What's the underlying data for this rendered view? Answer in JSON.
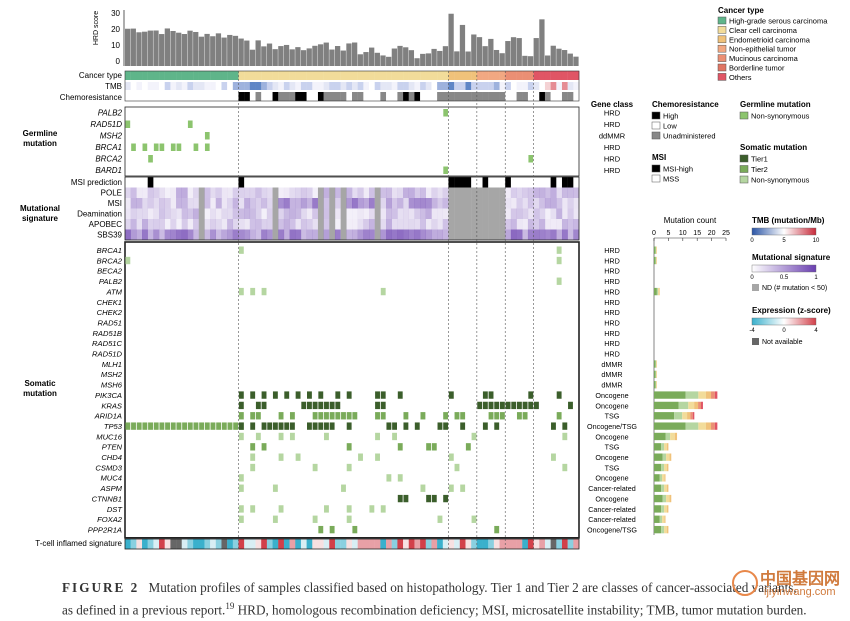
{
  "figure": {
    "bar_axis_label": "HRD score",
    "bar_axis_ticks": [
      "30",
      "20",
      "10",
      "0"
    ],
    "track_labels": {
      "cancer_type": "Cancer type",
      "tmb": "TMB",
      "chemo": "Chemoresistance"
    },
    "section_labels": {
      "germline": "Germline mutation",
      "signature": "Mutational signature",
      "somatic": "Somatic mutation"
    },
    "germline_genes": [
      "PALB2",
      "RAD51D",
      "MSH2",
      "BRCA1",
      "BRCA2",
      "BARD1"
    ],
    "germline_classes": [
      "HRD",
      "HRD",
      "ddMMR",
      "HRD",
      "HRD",
      "HRD"
    ],
    "signature_rows": [
      "MSI prediction",
      "POLE",
      "MSI",
      "Deamination",
      "APOBEC",
      "SBS39"
    ],
    "somatic_genes": [
      "BRCA1",
      "BRCA2",
      "BECA2",
      "PALB2",
      "ATM",
      "CHEK1",
      "CHEK2",
      "RAD51",
      "RAD51B",
      "RAD51C",
      "RAD51D",
      "MLH1",
      "MSH2",
      "MSH6",
      "PIK3CA",
      "KRAS",
      "ARID1A",
      "TP53",
      "MUC16",
      "PTEN",
      "CHD4",
      "CSMD3",
      "MUC4",
      "ASPM",
      "CTNNB1",
      "DST",
      "FOXA2",
      "PPP2R1A"
    ],
    "somatic_classes": [
      "HRD",
      "HRD",
      "HRD",
      "HRD",
      "HRD",
      "HRD",
      "HRD",
      "HRD",
      "HRD",
      "HRD",
      "HRD",
      "dMMR",
      "dMMR",
      "dMMR",
      "Oncogene",
      "Oncogene",
      "TSG",
      "Oncogene/TSG",
      "Oncogene",
      "TSG",
      "Oncogene",
      "TSG",
      "Oncogene",
      "Cancer-related",
      "Oncogene",
      "Cancer-related",
      "Cancer-related",
      "Oncogene/TSG"
    ],
    "tcell_label": "T-cell inflamed signature",
    "gene_class_header": "Gene class",
    "mutation_count": {
      "title": "Mutation count",
      "ticks": [
        "0",
        "5",
        "10",
        "15",
        "20",
        "25"
      ]
    }
  },
  "legends": {
    "cancer_type": {
      "title": "Cancer type",
      "items": [
        {
          "label": "High-grade serous carcinoma",
          "color": "#5fb58a"
        },
        {
          "label": "Clear cell carcinoma",
          "color": "#f2dc9a"
        },
        {
          "label": "Endometrioid carcinoma",
          "color": "#f0c27a"
        },
        {
          "label": "Non-epithelial tumor",
          "color": "#f2a882"
        },
        {
          "label": "Mucinous carcinoma",
          "color": "#eb8f74"
        },
        {
          "label": "Borderline tumor",
          "color": "#e07563"
        },
        {
          "label": "Others",
          "color": "#e05565"
        }
      ]
    },
    "chemo": {
      "title": "Chemoresistance",
      "items": [
        {
          "label": "High",
          "color": "#000000"
        },
        {
          "label": "Low",
          "color": "#ffffff"
        },
        {
          "label": "Unadministered",
          "color": "#888888"
        }
      ]
    },
    "germline": {
      "title": "Germline mutation",
      "items": [
        {
          "label": "Non-synonymous",
          "color": "#8cc46e"
        }
      ]
    },
    "msi": {
      "title": "MSI",
      "items": [
        {
          "label": "MSI-high",
          "color": "#000000"
        },
        {
          "label": "MSS",
          "color": "#ffffff"
        }
      ]
    },
    "somatic": {
      "title": "Somatic mutation",
      "items": [
        {
          "label": "Tier1",
          "color": "#3b5e2b"
        },
        {
          "label": "Tier2",
          "color": "#7aab5a"
        },
        {
          "label": "Non-synonymous",
          "color": "#b5d6a1"
        }
      ]
    },
    "tmb": {
      "title": "TMB (mutation/Mb)",
      "ticks": [
        "0",
        "5",
        "10"
      ]
    },
    "signature": {
      "title": "Mutational signature",
      "ticks": [
        "0",
        "0.5",
        "1"
      ],
      "nd_label": "ND (# mutation < 50)"
    },
    "expression": {
      "title": "Expression (z-score)",
      "ticks": [
        "-4",
        "0",
        "4"
      ],
      "na_label": "Not available"
    }
  },
  "caption": {
    "label": "FIGURE 2",
    "text1": "Mutation profiles of samples classified based on histopathology. Tier 1 and Tier 2 are classes of cancer-associated variants,",
    "text2": "as defined in a previous report.",
    "ref": "19",
    "text3": " HRD, homologous recombination deficiency; MSI, microsatellite instability; TMB, tumor mutation burden."
  },
  "watermark": {
    "cn": "中国基因网",
    "url": "ijiyinwang.com"
  },
  "colors": {
    "hgsc": "#5fb58a",
    "clear": "#f2dc9a",
    "endo": "#f0c27a",
    "tier1": "#3b5e2b",
    "tier2": "#7aab5a",
    "nonsyn": "#b5d6a1",
    "germ": "#8cc46e",
    "grey": "#a6a6a6",
    "purple": "#9a7fc6"
  }
}
